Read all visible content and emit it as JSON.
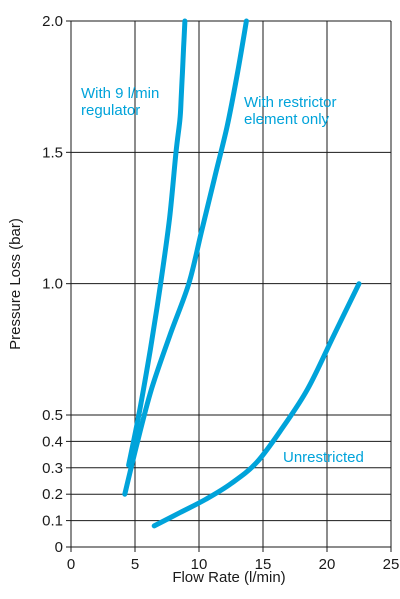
{
  "chart_data": {
    "type": "line",
    "xlabel": "Flow Rate (l/min)",
    "ylabel": "Pressure Loss (bar)",
    "xlim": [
      0,
      25
    ],
    "ylim": [
      0,
      2.0
    ],
    "xticks": [
      0,
      5,
      10,
      15,
      20,
      25
    ],
    "yticks": [
      0,
      0.1,
      0.2,
      0.3,
      0.4,
      0.5,
      1.0,
      1.5,
      2.0
    ],
    "ytick_labels": [
      "0",
      "0.1",
      "0.2",
      "0.3",
      "0.4",
      "0.5",
      "1.0",
      "1.5",
      "2.0"
    ],
    "grid": true,
    "line_color": "#00a3da",
    "series": [
      {
        "name": "With 9 l/min regulator",
        "x": [
          4.5,
          5.3,
          6.2,
          7.0,
          7.7,
          8.2,
          8.5,
          8.6,
          8.7,
          8.8,
          8.9
        ],
        "y": [
          0.31,
          0.5,
          0.75,
          1.0,
          1.25,
          1.5,
          1.62,
          1.7,
          1.8,
          1.9,
          2.0
        ]
      },
      {
        "name": "With restrictor element only",
        "x": [
          4.2,
          5.2,
          6.3,
          7.7,
          9.2,
          10.2,
          11.2,
          12.2,
          13.0,
          13.7
        ],
        "y": [
          0.2,
          0.4,
          0.6,
          0.8,
          1.0,
          1.2,
          1.4,
          1.6,
          1.8,
          2.0
        ]
      },
      {
        "name": "Unrestricted",
        "x": [
          6.5,
          8.5,
          10.5,
          12.5,
          14.5,
          16.5,
          18.5,
          20.5,
          22.5
        ],
        "y": [
          0.08,
          0.13,
          0.18,
          0.24,
          0.32,
          0.45,
          0.6,
          0.8,
          1.0
        ]
      }
    ],
    "annotations": [
      {
        "lines": [
          "With 9 l/min",
          "regulator"
        ]
      },
      {
        "lines": [
          "With restrictor",
          "element only"
        ]
      },
      {
        "lines": [
          "Unrestricted"
        ]
      }
    ]
  }
}
